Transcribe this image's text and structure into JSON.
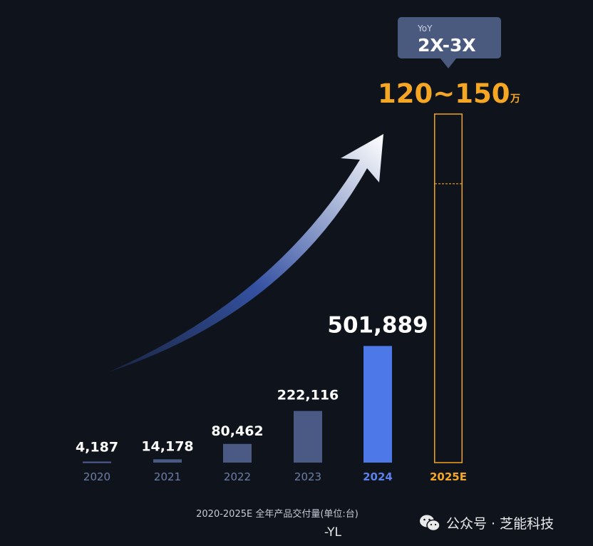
{
  "chart_data": {
    "type": "bar",
    "categories": [
      "2020",
      "2021",
      "2022",
      "2023",
      "2024",
      "2025E"
    ],
    "values": [
      4187,
      14178,
      80462,
      222116,
      501889,
      1500000
    ],
    "value_labels": [
      "4,187",
      "14,178",
      "80,462",
      "222,116",
      "501,889",
      "120~150"
    ],
    "projection_range": [
      1200000,
      1500000
    ],
    "projection_unit": "万",
    "yoy_label": "YoY",
    "yoy_value": "2X-3X",
    "ylim": [
      0,
      1500000
    ],
    "grid": false,
    "colors": {
      "past_bar": "#4a5a85",
      "highlight_bar": "#4d78e8",
      "projection_outline": "#f2a31c",
      "past_year_text": "#6d7fa8",
      "highlight_year_text": "#5b82ea",
      "projection_text": "#f5a623",
      "callout_bg": "#4a5a7e"
    }
  },
  "caption": "2020-2025E 全年产品交付量(单位:台)",
  "caption_fragment": "-YL",
  "watermark": {
    "text": "公众号 · 芝能科技",
    "icon": "wechat-icon"
  }
}
